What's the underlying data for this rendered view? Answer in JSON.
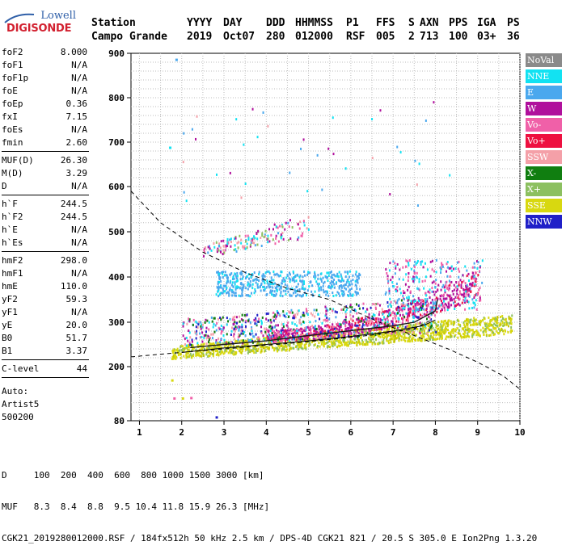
{
  "logo": {
    "line1": "Lowell",
    "line2": "DIGISONDE"
  },
  "header": {
    "labels": [
      "Station",
      "YYYY",
      "DAY",
      "DDD",
      "HHMMSS",
      "P1",
      "FFS",
      "S",
      "AXN",
      "PPS",
      "IGA",
      "PS"
    ],
    "values": [
      "Campo Grande",
      "2019",
      "Oct07",
      "280",
      "012000",
      "RSF",
      "005",
      "2",
      "713",
      "100",
      "03+",
      "36"
    ]
  },
  "params": {
    "group1": [
      [
        "foF2",
        "8.000"
      ],
      [
        "foF1",
        "N/A"
      ],
      [
        "foF1p",
        "N/A"
      ],
      [
        "foE",
        "N/A"
      ],
      [
        "foEp",
        "0.36"
      ],
      [
        "fxI",
        "7.15"
      ],
      [
        "foEs",
        "N/A"
      ],
      [
        "fmin",
        "2.60"
      ]
    ],
    "group2": [
      [
        "MUF(D)",
        "26.30"
      ],
      [
        "M(D)",
        "3.29"
      ],
      [
        "D",
        "N/A"
      ]
    ],
    "group3": [
      [
        "h`F",
        "244.5"
      ],
      [
        "h`F2",
        "244.5"
      ],
      [
        "h`E",
        "N/A"
      ],
      [
        "h`Es",
        "N/A"
      ]
    ],
    "group4": [
      [
        "hmF2",
        "298.0"
      ],
      [
        "hmF1",
        "N/A"
      ],
      [
        "hmE",
        "110.0"
      ],
      [
        "yF2",
        "59.3"
      ],
      [
        "yF1",
        "N/A"
      ],
      [
        "yE",
        "20.0"
      ],
      [
        "B0",
        "51.7"
      ],
      [
        "B1",
        "3.37"
      ]
    ],
    "group5": [
      [
        "C-level",
        "44"
      ]
    ],
    "auto": [
      "Auto:",
      "Artist5",
      "500200"
    ]
  },
  "legend": [
    {
      "label": "NoVal",
      "color": "#8a8a8a"
    },
    {
      "label": "NNE",
      "color": "#12e2f2"
    },
    {
      "label": "E",
      "color": "#4aa8ee"
    },
    {
      "label": "W",
      "color": "#b0109c"
    },
    {
      "label": "Vo-",
      "color": "#f060a8"
    },
    {
      "label": "Vo+",
      "color": "#ee1040"
    },
    {
      "label": "SSW",
      "color": "#f4a0a8"
    },
    {
      "label": "X-",
      "color": "#107e10"
    },
    {
      "label": "X+",
      "color": "#8cc060"
    },
    {
      "label": "SSE",
      "color": "#d8d810"
    },
    {
      "label": "NNW",
      "color": "#2020c8"
    }
  ],
  "chart_data": {
    "type": "scatter",
    "title": "",
    "xlabel": "",
    "ylabel": "",
    "xlim": [
      0.8,
      10
    ],
    "ylim": [
      80,
      900
    ],
    "x_ticks": [
      "1",
      "2",
      "3",
      "4",
      "5",
      "6",
      "7",
      "8",
      "9",
      "10"
    ],
    "y_ticks": [
      "80",
      "200",
      "300",
      "400",
      "500",
      "600",
      "700",
      "800",
      "900"
    ],
    "grid": true,
    "series": [
      {
        "color": "#4aa8ee",
        "points": [
          [
            3.0,
            375
          ],
          [
            3.5,
            385
          ],
          [
            4.0,
            395
          ],
          [
            4.5,
            400
          ],
          [
            5.0,
            395
          ],
          [
            5.5,
            380
          ],
          [
            6.0,
            370
          ]
        ]
      },
      {
        "color": "#d8d810",
        "points": [
          [
            2.0,
            230
          ],
          [
            3.0,
            240
          ],
          [
            4.0,
            250
          ],
          [
            5.0,
            265
          ],
          [
            6.0,
            275
          ],
          [
            7.0,
            285
          ],
          [
            8.0,
            295
          ],
          [
            9.0,
            305
          ],
          [
            9.8,
            310
          ]
        ]
      },
      {
        "color": "#b0109c",
        "points": [
          [
            4.0,
            272
          ],
          [
            5.0,
            285
          ],
          [
            6.0,
            295
          ],
          [
            7.0,
            310
          ],
          [
            7.5,
            325
          ],
          [
            8.0,
            345
          ],
          [
            8.5,
            370
          ],
          [
            9.0,
            390
          ]
        ]
      },
      {
        "color": "#f4a0a8",
        "points": [
          [
            3.5,
            480
          ],
          [
            4.0,
            495
          ],
          [
            4.5,
            530
          ],
          [
            5.0,
            520
          ]
        ]
      }
    ],
    "lines": {
      "dashed": [
        [
          0.8,
          590
        ],
        [
          1.5,
          520
        ],
        [
          2.5,
          455
        ],
        [
          3.5,
          410
        ],
        [
          4.5,
          375
        ],
        [
          5.5,
          350
        ],
        [
          6.2,
          320
        ],
        [
          6.8,
          295
        ],
        [
          7.5,
          270
        ],
        [
          8.3,
          240
        ],
        [
          9.0,
          210
        ],
        [
          9.6,
          180
        ],
        [
          10.0,
          150
        ]
      ],
      "dashed_low": [
        [
          0.8,
          222
        ],
        [
          1.5,
          228
        ],
        [
          2.5,
          236
        ],
        [
          3.5,
          244
        ],
        [
          4.5,
          252
        ],
        [
          5.5,
          261
        ],
        [
          6.5,
          271
        ],
        [
          7.5,
          285
        ],
        [
          7.9,
          305
        ]
      ],
      "solid": [
        [
          2.0,
          232
        ],
        [
          3.0,
          242
        ],
        [
          4.0,
          250
        ],
        [
          5.0,
          258
        ],
        [
          6.0,
          268
        ],
        [
          7.0,
          280
        ],
        [
          7.7,
          292
        ],
        [
          8.0,
          305
        ]
      ],
      "black_trace": [
        [
          2.2,
          243
        ],
        [
          3.0,
          250
        ],
        [
          4.0,
          258
        ],
        [
          5.0,
          270
        ],
        [
          6.0,
          281
        ],
        [
          7.0,
          292
        ],
        [
          7.5,
          300
        ],
        [
          8.0,
          325
        ],
        [
          8.05,
          350
        ]
      ]
    }
  },
  "bottom": {
    "line1": "D     100  200  400  600  800 1000 1500 3000 [km]",
    "line2": "MUF   8.3  8.4  8.8  9.5 10.4 11.8 15.9 26.3 [MHz]",
    "line3": "CGK21_2019280012000.RSF / 184fx512h 50 kHz 2.5 km / DPS-4D CGK21 821 / 20.5 S 305.0 E Ion2Png 1.3.20"
  }
}
